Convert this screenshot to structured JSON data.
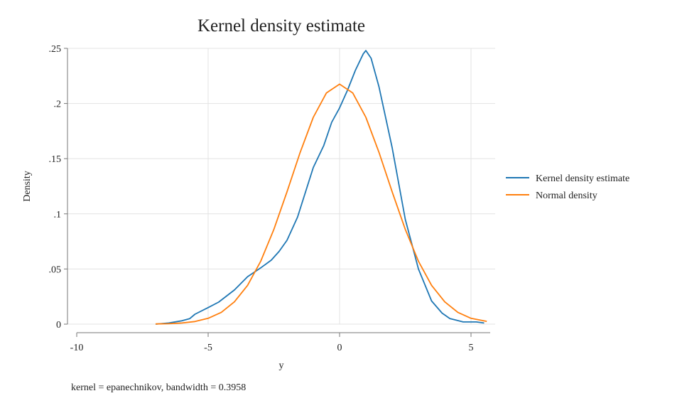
{
  "chart_data": {
    "type": "line",
    "title": "Kernel density estimate",
    "xlabel": "y",
    "ylabel": "Density",
    "note": "kernel = epanechnikov, bandwidth = 0.3958",
    "xlim": [
      -10,
      5.8
    ],
    "ylim": [
      0,
      0.25
    ],
    "xticks": [
      -10,
      -5,
      0,
      5
    ],
    "xtick_labels": [
      "-10",
      "-5",
      "0",
      "5"
    ],
    "yticks": [
      0,
      0.05,
      0.1,
      0.15,
      0.2,
      0.25
    ],
    "ytick_labels": [
      "0",
      ".05",
      ".1",
      ".15",
      ".2",
      ".25"
    ],
    "grid": true,
    "legend_position": "right",
    "series": [
      {
        "name": "Kernel density estimate",
        "color": "#1f77b4",
        "x": [
          -7,
          -6.5,
          -6,
          -5.7,
          -5.5,
          -5,
          -4.6,
          -4,
          -3.5,
          -3,
          -2.6,
          -2.3,
          -2,
          -1.6,
          -1,
          -0.6,
          -0.3,
          0,
          0.3,
          0.6,
          0.9,
          1,
          1.2,
          1.5,
          2,
          2.5,
          3,
          3.5,
          3.9,
          4.2,
          4.7,
          5.2,
          5.5
        ],
        "y": [
          0.0,
          0.001,
          0.003,
          0.005,
          0.009,
          0.015,
          0.02,
          0.031,
          0.043,
          0.051,
          0.058,
          0.066,
          0.076,
          0.097,
          0.142,
          0.162,
          0.183,
          0.196,
          0.212,
          0.23,
          0.245,
          0.248,
          0.241,
          0.215,
          0.16,
          0.095,
          0.05,
          0.021,
          0.01,
          0.005,
          0.002,
          0.002,
          0.001
        ]
      },
      {
        "name": "Normal density",
        "color": "#ff7f0e",
        "x": [
          -7,
          -6.5,
          -6,
          -5.5,
          -5,
          -4.5,
          -4,
          -3.5,
          -3,
          -2.5,
          -2,
          -1.5,
          -1,
          -0.5,
          0,
          0.5,
          1,
          1.5,
          2,
          2.5,
          3,
          3.5,
          4,
          4.5,
          5,
          5.6
        ],
        "y": [
          0.0002,
          0.0004,
          0.001,
          0.0024,
          0.0053,
          0.0107,
          0.0202,
          0.0352,
          0.057,
          0.0859,
          0.12,
          0.1557,
          0.1875,
          0.2096,
          0.2175,
          0.2096,
          0.1875,
          0.1557,
          0.12,
          0.0859,
          0.057,
          0.0352,
          0.0202,
          0.0107,
          0.0053,
          0.0025
        ]
      }
    ]
  }
}
